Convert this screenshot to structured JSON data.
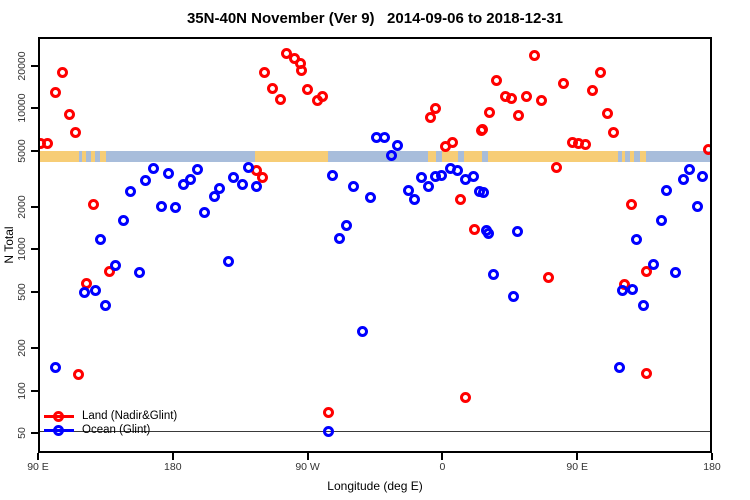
{
  "chart_data": {
    "type": "scatter",
    "title": "35N-40N November (Ver 9)   2014-09-06 to 2018-12-31",
    "xlabel": "Longitude (deg E)",
    "ylabel": "N Total",
    "x_axis": {
      "span_deg": [
        90,
        540
      ],
      "ticks": [
        {
          "label": "90 E",
          "lon": 90
        },
        {
          "label": "180",
          "lon": 180
        },
        {
          "label": "90 W",
          "lon": 270
        },
        {
          "label": "0",
          "lon": 360
        },
        {
          "label": "90 E",
          "lon": 450
        },
        {
          "label": "180",
          "lon": 540
        }
      ]
    },
    "y_axis": {
      "scale": "log",
      "range": [
        40,
        30000
      ],
      "ticks": [
        {
          "label": "50",
          "value": 50
        },
        {
          "label": "100",
          "value": 100
        },
        {
          "label": "200",
          "value": 200
        },
        {
          "label": "500",
          "value": 500
        },
        {
          "label": "1000",
          "value": 1000
        },
        {
          "label": "2000",
          "value": 2000
        },
        {
          "label": "5000",
          "value": 5000
        },
        {
          "label": "10000",
          "value": 10000
        },
        {
          "label": "20000",
          "value": 20000
        }
      ]
    },
    "reference_line_value": 50,
    "map_band": {
      "description": "land/ocean surface strip for the 35N-40N latitude band",
      "value_top": 4800,
      "value_bottom": 4000,
      "land_color": "#F7CD76",
      "ocean_color": "#A8BDDB",
      "segments": [
        {
          "from": 90,
          "to": 118.7,
          "surface": "land"
        },
        {
          "from": 118.7,
          "to": 121,
          "surface": "ocean"
        },
        {
          "from": 121,
          "to": 123.5,
          "surface": "land"
        },
        {
          "from": 123.5,
          "to": 126.5,
          "surface": "ocean"
        },
        {
          "from": 126.5,
          "to": 129.5,
          "surface": "land"
        },
        {
          "from": 129.5,
          "to": 133,
          "surface": "ocean"
        },
        {
          "from": 133,
          "to": 137,
          "surface": "land"
        },
        {
          "from": 137,
          "to": 236.4,
          "surface": "ocean"
        },
        {
          "from": 236.4,
          "to": 285.1,
          "surface": "land"
        },
        {
          "from": 285.1,
          "to": 351.9,
          "surface": "ocean"
        },
        {
          "from": 351.9,
          "to": 357,
          "surface": "land"
        },
        {
          "from": 357,
          "to": 361,
          "surface": "ocean"
        },
        {
          "from": 361,
          "to": 372,
          "surface": "land"
        },
        {
          "from": 372,
          "to": 376,
          "surface": "ocean"
        },
        {
          "from": 376,
          "to": 388,
          "surface": "land"
        },
        {
          "from": 388,
          "to": 392,
          "surface": "ocean"
        },
        {
          "from": 392,
          "to": 478.9,
          "surface": "land"
        },
        {
          "from": 478.9,
          "to": 481,
          "surface": "ocean"
        },
        {
          "from": 481,
          "to": 483.5,
          "surface": "land"
        },
        {
          "from": 483.5,
          "to": 486.5,
          "surface": "ocean"
        },
        {
          "from": 486.5,
          "to": 489.5,
          "surface": "land"
        },
        {
          "from": 489.5,
          "to": 493,
          "surface": "ocean"
        },
        {
          "from": 493,
          "to": 497,
          "surface": "land"
        },
        {
          "from": 497,
          "to": 540,
          "surface": "ocean"
        }
      ]
    },
    "series": [
      {
        "name": "Land (Nadir&Glint)",
        "color": "#FF0000",
        "points": [
          [
            107.4,
            17200
          ],
          [
            102.7,
            12600
          ],
          [
            112.7,
            8800
          ],
          [
            116.7,
            6560
          ],
          [
            92.7,
            5480
          ],
          [
            98.0,
            5480
          ],
          [
            242.3,
            17200
          ],
          [
            257.0,
            23800
          ],
          [
            262.4,
            21900
          ],
          [
            266.4,
            20200
          ],
          [
            267.1,
            17800
          ],
          [
            247.7,
            13400
          ],
          [
            253.0,
            11200
          ],
          [
            271.1,
            13200
          ],
          [
            281.1,
            11800
          ],
          [
            277.8,
            10900
          ],
          [
            356.6,
            9710
          ],
          [
            353.3,
            8380
          ],
          [
            388.0,
            6890
          ],
          [
            363.3,
            5220
          ],
          [
            368.0,
            5570
          ],
          [
            237.0,
            3480
          ],
          [
            241.0,
            3150
          ],
          [
            128.1,
            2030
          ],
          [
            138.8,
            680
          ],
          [
            123.4,
            560
          ],
          [
            373.3,
            2200
          ],
          [
            382.7,
            1330
          ],
          [
            437.5,
            3710
          ],
          [
            487.6,
            2030
          ],
          [
            432.1,
            610
          ],
          [
            497.6,
            680
          ],
          [
            482.9,
            550
          ],
          [
            422.8,
            23000
          ],
          [
            466.9,
            17200
          ],
          [
            397.3,
            15300
          ],
          [
            442.1,
            14600
          ],
          [
            461.5,
            13000
          ],
          [
            403.4,
            11800
          ],
          [
            407.4,
            11400
          ],
          [
            417.4,
            11800
          ],
          [
            427.4,
            10900
          ],
          [
            392.7,
            9100
          ],
          [
            412.0,
            8670
          ],
          [
            471.5,
            8950
          ],
          [
            387.3,
            6780
          ],
          [
            475.6,
            6560
          ],
          [
            448.1,
            5570
          ],
          [
            452.2,
            5480
          ],
          [
            456.8,
            5390
          ],
          [
            539.0,
            4900
          ],
          [
            376.7,
            87
          ],
          [
            118.1,
            125
          ],
          [
            285.1,
            68
          ],
          [
            497.6,
            127
          ]
        ]
      },
      {
        "name": "Ocean (Glint)",
        "color": "#0000FF",
        "points": [
          [
            152.8,
            2510
          ],
          [
            162.8,
            3000
          ],
          [
            168.2,
            3650
          ],
          [
            178.2,
            3360
          ],
          [
            188.2,
            2770
          ],
          [
            192.9,
            3050
          ],
          [
            197.6,
            3590
          ],
          [
            202.3,
            1780
          ],
          [
            208.9,
            2310
          ],
          [
            212.3,
            2630
          ],
          [
            221.6,
            3150
          ],
          [
            227.6,
            2810
          ],
          [
            231.7,
            3710
          ],
          [
            237.0,
            2720
          ],
          [
            173.5,
            1960
          ],
          [
            182.9,
            1930
          ],
          [
            148.1,
            1560
          ],
          [
            132.8,
            1130
          ],
          [
            142.8,
            750
          ],
          [
            158.8,
            670
          ],
          [
            122.1,
            483
          ],
          [
            129.4,
            499
          ],
          [
            136.1,
            385
          ],
          [
            218.3,
            800
          ],
          [
            287.8,
            3250
          ],
          [
            301.8,
            2680
          ],
          [
            313.2,
            2240
          ],
          [
            338.6,
            2550
          ],
          [
            342.6,
            2200
          ],
          [
            347.2,
            3150
          ],
          [
            351.9,
            2720
          ],
          [
            356.6,
            3200
          ],
          [
            360.6,
            3250
          ],
          [
            366.6,
            3650
          ],
          [
            371.3,
            3530
          ],
          [
            376.7,
            3050
          ],
          [
            382.0,
            3200
          ],
          [
            386.0,
            2510
          ],
          [
            390.7,
            1310
          ],
          [
            297.1,
            1440
          ],
          [
            292.4,
            1160
          ],
          [
            307.8,
            256
          ],
          [
            317.2,
            6050
          ],
          [
            322.5,
            6050
          ],
          [
            331.2,
            5310
          ],
          [
            327.2,
            4510
          ],
          [
            388.7,
            2470
          ],
          [
            526.3,
            3590
          ],
          [
            535.0,
            3200
          ],
          [
            522.3,
            3050
          ],
          [
            511.0,
            2550
          ],
          [
            531.6,
            1960
          ],
          [
            507.6,
            1560
          ],
          [
            392.0,
            1260
          ],
          [
            411.4,
            1290
          ],
          [
            490.9,
            1130
          ],
          [
            502.3,
            760
          ],
          [
            517.0,
            670
          ],
          [
            395.3,
            640
          ],
          [
            408.7,
            453
          ],
          [
            481.5,
            499
          ],
          [
            488.2,
            507
          ],
          [
            495.6,
            391
          ],
          [
            102.7,
            142
          ],
          [
            285.1,
            50
          ],
          [
            479.5,
            142
          ]
        ]
      }
    ]
  },
  "legend": {
    "items": [
      {
        "label": "Land (Nadir&Glint)",
        "color": "#FF0000"
      },
      {
        "label": "Ocean (Glint)",
        "color": "#0000FF"
      }
    ]
  }
}
